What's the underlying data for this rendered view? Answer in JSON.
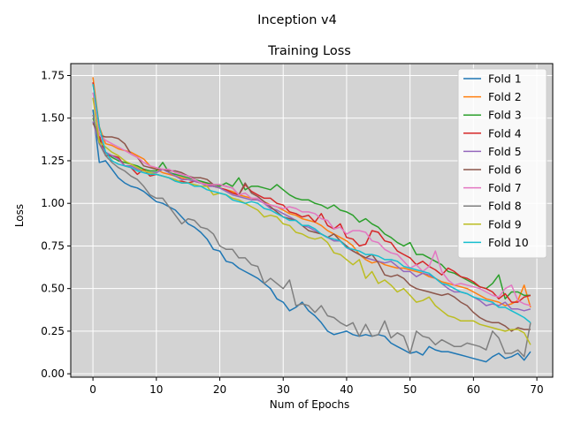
{
  "figure": {
    "suptitle": "Inception v4"
  },
  "chart_data": {
    "type": "line",
    "title": "Training Loss",
    "xlabel": "Num of Epochs",
    "ylabel": "Loss",
    "xlim": [
      -3.5,
      72.5
    ],
    "ylim": [
      -0.02,
      1.82
    ],
    "xticks": [
      0,
      10,
      20,
      30,
      40,
      50,
      60,
      70
    ],
    "yticks": [
      0.0,
      0.25,
      0.5,
      0.75,
      1.0,
      1.25,
      1.5,
      1.75
    ],
    "xtick_labels": [
      "0",
      "10",
      "20",
      "30",
      "40",
      "50",
      "60",
      "70"
    ],
    "ytick_labels": [
      "0.00",
      "0.25",
      "0.50",
      "0.75",
      "1.00",
      "1.25",
      "1.50",
      "1.75"
    ],
    "grid": true,
    "background": "#d3d3d3",
    "legend_position": "top-right",
    "series": [
      {
        "name": "Fold 1",
        "color": "#1f77b4",
        "y": [
          1.55,
          1.24,
          1.25,
          1.2,
          1.15,
          1.12,
          1.1,
          1.09,
          1.07,
          1.04,
          1.01,
          1.0,
          0.98,
          0.96,
          0.92,
          0.88,
          0.86,
          0.83,
          0.79,
          0.73,
          0.72,
          0.66,
          0.65,
          0.62,
          0.6,
          0.58,
          0.56,
          0.53,
          0.5,
          0.44,
          0.42,
          0.37,
          0.39,
          0.42,
          0.37,
          0.34,
          0.3,
          0.25,
          0.23,
          0.24,
          0.25,
          0.23,
          0.22,
          0.23,
          0.22,
          0.23,
          0.22,
          0.18,
          0.16,
          0.14,
          0.12,
          0.13,
          0.11,
          0.16,
          0.14,
          0.13,
          0.13,
          0.12,
          0.11,
          0.1,
          0.09,
          0.08,
          0.07,
          0.1,
          0.12,
          0.09,
          0.1,
          0.12,
          0.08,
          0.13
        ]
      },
      {
        "name": "Fold 2",
        "color": "#ff7f0e",
        "y": [
          1.74,
          1.45,
          1.35,
          1.34,
          1.32,
          1.31,
          1.3,
          1.28,
          1.26,
          1.22,
          1.2,
          1.18,
          1.17,
          1.16,
          1.15,
          1.14,
          1.13,
          1.12,
          1.12,
          1.1,
          1.09,
          1.08,
          1.07,
          1.05,
          1.04,
          1.03,
          1.02,
          1.01,
          0.99,
          0.98,
          0.96,
          0.94,
          0.93,
          0.91,
          0.9,
          0.89,
          0.87,
          0.84,
          0.82,
          0.8,
          0.78,
          0.75,
          0.7,
          0.67,
          0.65,
          0.66,
          0.64,
          0.63,
          0.62,
          0.62,
          0.61,
          0.6,
          0.59,
          0.57,
          0.56,
          0.54,
          0.53,
          0.52,
          0.51,
          0.5,
          0.48,
          0.46,
          0.44,
          0.43,
          0.42,
          0.4,
          0.41,
          0.43,
          0.52,
          0.39
        ]
      },
      {
        "name": "Fold 3",
        "color": "#2ca02c",
        "y": [
          1.5,
          1.38,
          1.3,
          1.27,
          1.25,
          1.24,
          1.23,
          1.22,
          1.2,
          1.19,
          1.19,
          1.24,
          1.18,
          1.17,
          1.16,
          1.15,
          1.14,
          1.13,
          1.12,
          1.11,
          1.1,
          1.12,
          1.1,
          1.15,
          1.08,
          1.1,
          1.1,
          1.09,
          1.08,
          1.11,
          1.08,
          1.05,
          1.03,
          1.02,
          1.02,
          1.0,
          0.99,
          0.97,
          0.99,
          0.96,
          0.95,
          0.93,
          0.89,
          0.91,
          0.88,
          0.86,
          0.82,
          0.8,
          0.77,
          0.75,
          0.77,
          0.7,
          0.7,
          0.68,
          0.66,
          0.64,
          0.6,
          0.59,
          0.57,
          0.55,
          0.53,
          0.51,
          0.5,
          0.53,
          0.58,
          0.44,
          0.48,
          0.48,
          0.46,
          0.46
        ]
      },
      {
        "name": "Fold 4",
        "color": "#d62728",
        "y": [
          1.71,
          1.4,
          1.28,
          1.28,
          1.27,
          1.22,
          1.21,
          1.17,
          1.2,
          1.16,
          1.17,
          1.16,
          1.15,
          1.13,
          1.13,
          1.12,
          1.13,
          1.12,
          1.11,
          1.1,
          1.09,
          1.08,
          1.06,
          1.05,
          1.11,
          1.07,
          1.05,
          1.03,
          1.03,
          1.0,
          0.99,
          0.95,
          0.94,
          0.92,
          0.93,
          0.89,
          0.94,
          0.87,
          0.85,
          0.88,
          0.8,
          0.79,
          0.75,
          0.76,
          0.84,
          0.83,
          0.78,
          0.77,
          0.72,
          0.7,
          0.68,
          0.64,
          0.66,
          0.63,
          0.61,
          0.58,
          0.62,
          0.6,
          0.57,
          0.56,
          0.54,
          0.51,
          0.5,
          0.48,
          0.44,
          0.47,
          0.42,
          0.42,
          0.45,
          0.46
        ]
      },
      {
        "name": "Fold 5",
        "color": "#9467bd",
        "y": [
          1.48,
          1.35,
          1.3,
          1.28,
          1.26,
          1.22,
          1.22,
          1.2,
          1.19,
          1.18,
          1.18,
          1.2,
          1.18,
          1.16,
          1.14,
          1.14,
          1.13,
          1.12,
          1.1,
          1.1,
          1.09,
          1.07,
          1.05,
          1.04,
          1.03,
          1.02,
          1.02,
          1.0,
          0.97,
          0.96,
          0.94,
          0.92,
          0.9,
          0.87,
          0.86,
          0.84,
          0.82,
          0.8,
          0.78,
          0.78,
          0.74,
          0.72,
          0.7,
          0.68,
          0.67,
          0.66,
          0.65,
          0.66,
          0.63,
          0.6,
          0.6,
          0.57,
          0.59,
          0.58,
          0.56,
          0.53,
          0.5,
          0.48,
          0.48,
          0.47,
          0.45,
          0.43,
          0.4,
          0.41,
          0.4,
          0.42,
          0.38,
          0.38,
          0.37,
          0.38
        ]
      },
      {
        "name": "Fold 6",
        "color": "#8c564b",
        "y": [
          1.47,
          1.4,
          1.39,
          1.39,
          1.38,
          1.35,
          1.29,
          1.27,
          1.22,
          1.21,
          1.2,
          1.2,
          1.19,
          1.19,
          1.18,
          1.16,
          1.15,
          1.15,
          1.14,
          1.11,
          1.11,
          1.1,
          1.09,
          1.05,
          1.12,
          1.06,
          1.04,
          1.01,
          0.98,
          0.95,
          0.92,
          0.91,
          0.9,
          0.87,
          0.84,
          0.83,
          0.82,
          0.8,
          0.82,
          0.78,
          0.75,
          0.72,
          0.7,
          0.68,
          0.7,
          0.65,
          0.58,
          0.57,
          0.58,
          0.56,
          0.52,
          0.5,
          0.49,
          0.48,
          0.47,
          0.46,
          0.47,
          0.45,
          0.42,
          0.4,
          0.36,
          0.33,
          0.31,
          0.3,
          0.3,
          0.28,
          0.25,
          0.27,
          0.26,
          0.26
        ]
      },
      {
        "name": "Fold 7",
        "color": "#e377c2",
        "y": [
          1.65,
          1.4,
          1.37,
          1.35,
          1.33,
          1.31,
          1.29,
          1.27,
          1.24,
          1.22,
          1.21,
          1.2,
          1.2,
          1.18,
          1.17,
          1.16,
          1.14,
          1.12,
          1.11,
          1.11,
          1.11,
          1.1,
          1.09,
          1.05,
          1.06,
          1.03,
          1.03,
          1.0,
          0.99,
          0.98,
          0.97,
          0.98,
          0.97,
          0.95,
          0.95,
          0.94,
          0.91,
          0.9,
          0.85,
          0.86,
          0.82,
          0.84,
          0.84,
          0.83,
          0.78,
          0.77,
          0.73,
          0.71,
          0.7,
          0.66,
          0.62,
          0.64,
          0.6,
          0.63,
          0.72,
          0.6,
          0.55,
          0.52,
          0.53,
          0.52,
          0.51,
          0.5,
          0.48,
          0.46,
          0.45,
          0.5,
          0.52,
          0.43,
          0.41,
          0.4
        ]
      },
      {
        "name": "Fold 8",
        "color": "#7f7f7f",
        "y": [
          1.52,
          1.35,
          1.28,
          1.24,
          1.21,
          1.19,
          1.16,
          1.14,
          1.1,
          1.05,
          1.03,
          1.03,
          0.98,
          0.93,
          0.88,
          0.91,
          0.9,
          0.86,
          0.85,
          0.82,
          0.75,
          0.73,
          0.73,
          0.68,
          0.68,
          0.64,
          0.63,
          0.53,
          0.56,
          0.53,
          0.5,
          0.55,
          0.4,
          0.41,
          0.4,
          0.36,
          0.4,
          0.34,
          0.33,
          0.3,
          0.28,
          0.3,
          0.22,
          0.29,
          0.22,
          0.23,
          0.31,
          0.21,
          0.24,
          0.22,
          0.12,
          0.25,
          0.22,
          0.21,
          0.17,
          0.2,
          0.18,
          0.16,
          0.16,
          0.18,
          0.17,
          0.16,
          0.14,
          0.25,
          0.21,
          0.12,
          0.12,
          0.14,
          0.1,
          0.3
        ]
      },
      {
        "name": "Fold 9",
        "color": "#bcbd22",
        "y": [
          1.62,
          1.36,
          1.33,
          1.3,
          1.28,
          1.25,
          1.23,
          1.21,
          1.19,
          1.18,
          1.17,
          1.16,
          1.15,
          1.14,
          1.12,
          1.12,
          1.11,
          1.1,
          1.1,
          1.05,
          1.06,
          1.05,
          1.03,
          1.02,
          1.0,
          0.98,
          0.96,
          0.92,
          0.93,
          0.92,
          0.88,
          0.87,
          0.83,
          0.82,
          0.8,
          0.79,
          0.8,
          0.77,
          0.71,
          0.7,
          0.67,
          0.64,
          0.67,
          0.56,
          0.6,
          0.53,
          0.55,
          0.52,
          0.48,
          0.5,
          0.46,
          0.42,
          0.43,
          0.45,
          0.4,
          0.37,
          0.34,
          0.33,
          0.31,
          0.31,
          0.31,
          0.29,
          0.28,
          0.27,
          0.26,
          0.25,
          0.26,
          0.26,
          0.24,
          0.17
        ]
      },
      {
        "name": "Fold 10",
        "color": "#17becf",
        "y": [
          1.7,
          1.45,
          1.3,
          1.25,
          1.23,
          1.22,
          1.21,
          1.19,
          1.18,
          1.17,
          1.17,
          1.16,
          1.15,
          1.13,
          1.12,
          1.12,
          1.1,
          1.1,
          1.08,
          1.07,
          1.06,
          1.05,
          1.02,
          1.01,
          1.0,
          1.01,
          1.0,
          0.97,
          0.96,
          0.94,
          0.92,
          0.9,
          0.9,
          0.87,
          0.87,
          0.85,
          0.82,
          0.8,
          0.79,
          0.78,
          0.74,
          0.73,
          0.72,
          0.7,
          0.7,
          0.69,
          0.67,
          0.67,
          0.66,
          0.63,
          0.62,
          0.61,
          0.6,
          0.59,
          0.56,
          0.53,
          0.52,
          0.5,
          0.48,
          0.47,
          0.45,
          0.44,
          0.43,
          0.42,
          0.39,
          0.39,
          0.37,
          0.35,
          0.33,
          0.3
        ]
      }
    ]
  }
}
